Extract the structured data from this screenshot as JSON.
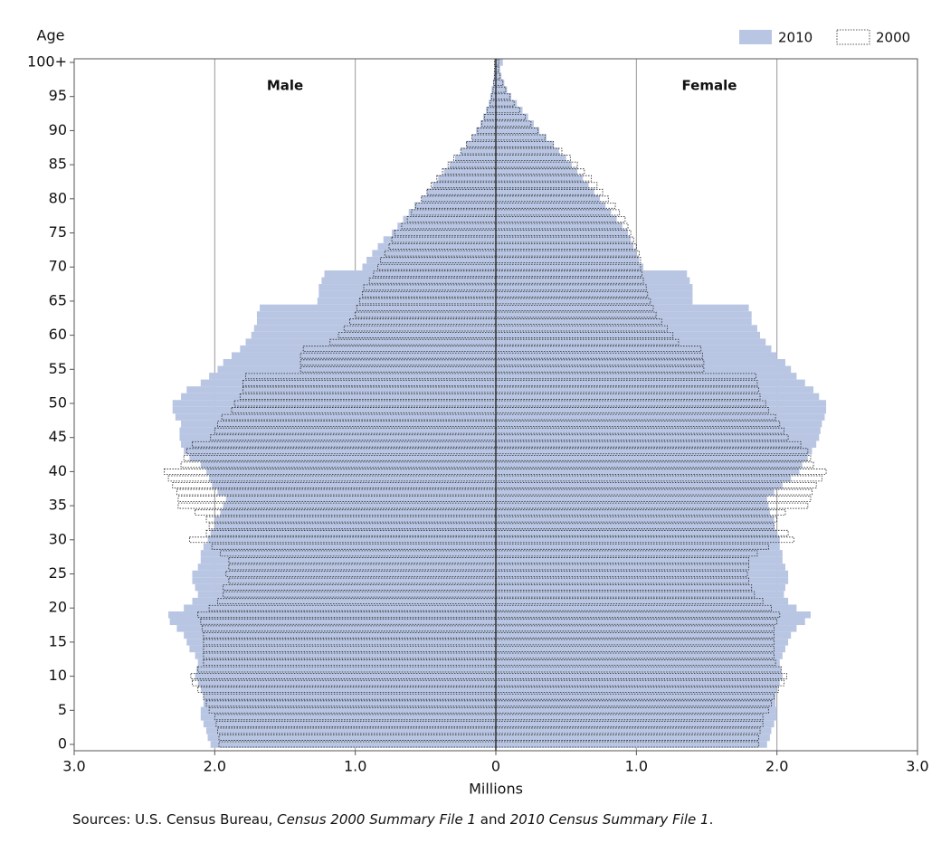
{
  "chart_data": {
    "type": "pyramid",
    "y_label": "Age",
    "x_label": "Millions",
    "male_label": "Male",
    "female_label": "Female",
    "legend_position": "top-right",
    "grid": true,
    "xlim": [
      -3,
      3
    ],
    "xticks": [
      {
        "value": -3,
        "label": "3.0"
      },
      {
        "value": -2,
        "label": "2.0"
      },
      {
        "value": -1,
        "label": "1.0"
      },
      0,
      {
        "value": 1,
        "label": "1.0"
      },
      {
        "value": 2,
        "label": "2.0"
      },
      {
        "value": 3,
        "label": "3.0"
      }
    ],
    "categories": [
      "0",
      null,
      null,
      null,
      null,
      "5",
      null,
      null,
      null,
      null,
      "10",
      null,
      null,
      null,
      null,
      "15",
      null,
      null,
      null,
      null,
      "20",
      null,
      null,
      null,
      null,
      "25",
      null,
      null,
      null,
      null,
      "30",
      null,
      null,
      null,
      null,
      "35",
      null,
      null,
      null,
      null,
      "40",
      null,
      null,
      null,
      null,
      "45",
      null,
      null,
      null,
      null,
      "50",
      null,
      null,
      null,
      null,
      "55",
      null,
      null,
      null,
      null,
      "60",
      null,
      null,
      null,
      null,
      "65",
      null,
      null,
      null,
      null,
      "70",
      null,
      null,
      null,
      null,
      "75",
      null,
      null,
      null,
      null,
      "80",
      null,
      null,
      null,
      null,
      "85",
      null,
      null,
      null,
      null,
      "90",
      null,
      null,
      null,
      null,
      "95",
      null,
      null,
      null,
      null,
      "100+"
    ],
    "series": [
      {
        "name": "2010",
        "color": "#b9c6e3",
        "style": "filled",
        "male": [
          2.03,
          2.05,
          2.06,
          2.08,
          2.1,
          2.1,
          2.08,
          2.08,
          2.1,
          2.12,
          2.14,
          2.13,
          2.12,
          2.14,
          2.18,
          2.2,
          2.22,
          2.27,
          2.32,
          2.33,
          2.22,
          2.16,
          2.12,
          2.14,
          2.16,
          2.16,
          2.12,
          2.1,
          2.1,
          2.08,
          2.05,
          2.03,
          2.0,
          2.0,
          1.96,
          1.94,
          1.92,
          1.98,
          2.02,
          2.04,
          2.06,
          2.1,
          2.18,
          2.22,
          2.24,
          2.25,
          2.25,
          2.24,
          2.28,
          2.3,
          2.3,
          2.24,
          2.2,
          2.1,
          2.04,
          1.98,
          1.94,
          1.88,
          1.82,
          1.78,
          1.74,
          1.72,
          1.7,
          1.7,
          1.68,
          1.27,
          1.26,
          1.26,
          1.24,
          1.22,
          0.95,
          0.92,
          0.88,
          0.84,
          0.8,
          0.74,
          0.7,
          0.66,
          0.62,
          0.58,
          0.53,
          0.49,
          0.45,
          0.41,
          0.37,
          0.33,
          0.29,
          0.25,
          0.21,
          0.17,
          0.14,
          0.11,
          0.09,
          0.07,
          0.05,
          0.04,
          0.03,
          0.02,
          0.015,
          0.01,
          0.01
        ],
        "female": [
          1.93,
          1.95,
          1.96,
          1.98,
          2.0,
          2.0,
          1.99,
          1.99,
          2.0,
          2.02,
          2.04,
          2.03,
          2.02,
          2.04,
          2.06,
          2.08,
          2.1,
          2.14,
          2.2,
          2.24,
          2.14,
          2.08,
          2.05,
          2.06,
          2.08,
          2.08,
          2.06,
          2.04,
          2.04,
          2.02,
          2.02,
          2.0,
          1.98,
          1.98,
          1.95,
          1.94,
          1.93,
          1.98,
          2.04,
          2.1,
          2.16,
          2.18,
          2.22,
          2.25,
          2.28,
          2.3,
          2.31,
          2.32,
          2.34,
          2.35,
          2.35,
          2.3,
          2.26,
          2.2,
          2.14,
          2.1,
          2.06,
          2.0,
          1.96,
          1.92,
          1.88,
          1.86,
          1.82,
          1.82,
          1.8,
          1.4,
          1.4,
          1.4,
          1.38,
          1.36,
          1.05,
          1.02,
          1.0,
          0.98,
          0.96,
          0.94,
          0.9,
          0.86,
          0.82,
          0.78,
          0.74,
          0.7,
          0.66,
          0.62,
          0.58,
          0.54,
          0.5,
          0.45,
          0.41,
          0.36,
          0.31,
          0.27,
          0.23,
          0.19,
          0.15,
          0.11,
          0.08,
          0.06,
          0.04,
          0.03,
          0.05
        ]
      },
      {
        "name": "2000",
        "color": "#222222",
        "style": "dotted",
        "male": [
          1.97,
          1.97,
          1.98,
          1.99,
          2.0,
          2.04,
          2.06,
          2.08,
          2.12,
          2.16,
          2.17,
          2.12,
          2.08,
          2.08,
          2.08,
          2.08,
          2.08,
          2.09,
          2.1,
          2.12,
          2.04,
          1.98,
          1.94,
          1.94,
          1.9,
          1.92,
          1.9,
          1.9,
          1.96,
          2.02,
          2.18,
          2.06,
          2.04,
          2.06,
          2.14,
          2.26,
          2.26,
          2.27,
          2.3,
          2.33,
          2.36,
          2.24,
          2.22,
          2.2,
          2.16,
          2.03,
          2.0,
          1.98,
          1.95,
          1.88,
          1.86,
          1.82,
          1.8,
          1.8,
          1.78,
          1.39,
          1.39,
          1.39,
          1.37,
          1.18,
          1.12,
          1.08,
          1.04,
          1.0,
          0.99,
          0.97,
          0.95,
          0.94,
          0.9,
          0.87,
          0.84,
          0.82,
          0.79,
          0.76,
          0.74,
          0.72,
          0.67,
          0.63,
          0.6,
          0.57,
          0.53,
          0.49,
          0.46,
          0.42,
          0.38,
          0.34,
          0.3,
          0.25,
          0.21,
          0.17,
          0.13,
          0.1,
          0.08,
          0.06,
          0.04,
          0.03,
          0.02,
          0.015,
          0.01,
          0.01,
          0.01
        ],
        "female": [
          1.87,
          1.87,
          1.88,
          1.9,
          1.9,
          1.94,
          1.96,
          1.98,
          2.01,
          2.05,
          2.07,
          2.03,
          1.99,
          1.98,
          1.98,
          1.98,
          1.98,
          1.98,
          2.0,
          2.02,
          1.96,
          1.9,
          1.84,
          1.82,
          1.8,
          1.79,
          1.8,
          1.8,
          1.86,
          1.94,
          2.12,
          2.08,
          1.98,
          2.0,
          2.06,
          2.22,
          2.24,
          2.25,
          2.28,
          2.32,
          2.35,
          2.26,
          2.24,
          2.22,
          2.17,
          2.08,
          2.05,
          2.02,
          1.99,
          1.94,
          1.92,
          1.88,
          1.87,
          1.86,
          1.85,
          1.48,
          1.48,
          1.47,
          1.46,
          1.3,
          1.26,
          1.22,
          1.18,
          1.14,
          1.12,
          1.1,
          1.08,
          1.07,
          1.05,
          1.04,
          1.03,
          1.03,
          1.02,
          1.0,
          0.98,
          0.96,
          0.94,
          0.92,
          0.88,
          0.85,
          0.8,
          0.76,
          0.72,
          0.68,
          0.63,
          0.58,
          0.53,
          0.47,
          0.41,
          0.35,
          0.3,
          0.25,
          0.21,
          0.17,
          0.13,
          0.1,
          0.07,
          0.05,
          0.03,
          0.02,
          0.02
        ]
      }
    ],
    "source": [
      {
        "text": "Sources: U.S. Census Bureau, ",
        "italic": false
      },
      {
        "text": "Census 2000 Summary File 1",
        "italic": true
      },
      {
        "text": " and ",
        "italic": false
      },
      {
        "text": "2010 Census Summary File 1",
        "italic": true
      },
      {
        "text": ".",
        "italic": false
      }
    ]
  }
}
